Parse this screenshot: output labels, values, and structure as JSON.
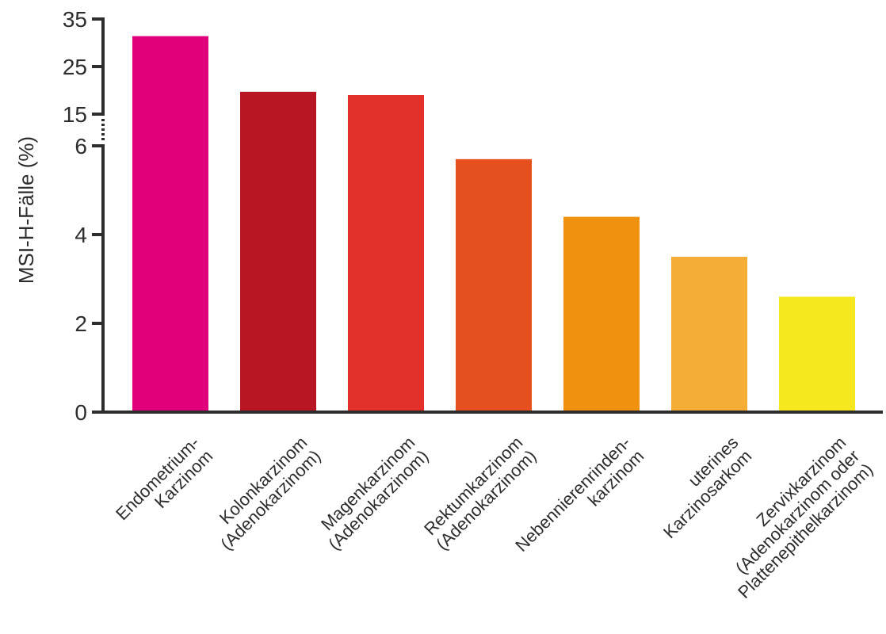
{
  "chart_data": {
    "type": "bar",
    "ylabel": "MSI-H-Fälle (%)",
    "categories": [
      [
        "Endometrium-",
        "Karzinom"
      ],
      [
        "Kolonkarzinom",
        "(Adenokarzinom)"
      ],
      [
        "Magenkarzinom",
        "(Adenokarzinom)"
      ],
      [
        "Rektumkarzinom",
        "(Adenokarzinom)"
      ],
      [
        "Nebennierenrinden-",
        "karzinom"
      ],
      [
        "uterines",
        "Karzinosarkom"
      ],
      [
        "Zervixkarzinom",
        "(Adenokarzinom oder",
        "Plattenepithelkarzinom)"
      ]
    ],
    "values": [
      31.4,
      19.7,
      19.0,
      5.7,
      4.4,
      3.5,
      2.6
    ],
    "colors": [
      "#e2007a",
      "#b81622",
      "#e2302a",
      "#e6501e",
      "#f0920f",
      "#f5ad35",
      "#f5e81e"
    ],
    "yticks": [
      0,
      2,
      4,
      6,
      15,
      25,
      35
    ],
    "axis_break": {
      "lower_max": 6,
      "upper_min": 15,
      "upper_max": 35
    }
  }
}
